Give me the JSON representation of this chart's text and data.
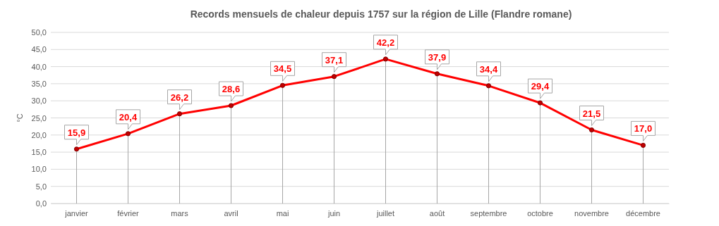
{
  "chart_data": {
    "type": "line",
    "title": "Records mensuels de chaleur depuis 1757 sur la région de Lille (Flandre romane)",
    "ylabel": "°C",
    "categories": [
      "janvier",
      "février",
      "mars",
      "avril",
      "mai",
      "juin",
      "juillet",
      "août",
      "septembre",
      "octobre",
      "novembre",
      "décembre"
    ],
    "series": [
      {
        "color": "#ff0000",
        "values": [
          15.9,
          20.4,
          26.2,
          28.6,
          34.5,
          37.1,
          42.2,
          37.9,
          34.4,
          29.4,
          21.5,
          17.0
        ],
        "value_labels": [
          "15,9",
          "20,4",
          "26,2",
          "28,6",
          "34,5",
          "37,1",
          "42,2",
          "37,9",
          "34,4",
          "29,4",
          "21,5",
          "17,0"
        ]
      }
    ],
    "ylim": [
      0,
      50
    ],
    "yticks": [
      {
        "value": 0,
        "label": "0,0"
      },
      {
        "value": 5,
        "label": "5,0"
      },
      {
        "value": 10,
        "label": "10,0"
      },
      {
        "value": 15,
        "label": "15,0"
      },
      {
        "value": 20,
        "label": "20,0"
      },
      {
        "value": 25,
        "label": "25,0"
      },
      {
        "value": 30,
        "label": "30,0"
      },
      {
        "value": 35,
        "label": "35,0"
      },
      {
        "value": 40,
        "label": "40,0"
      },
      {
        "value": 45,
        "label": "45,0"
      },
      {
        "value": 50,
        "label": "50,0"
      }
    ],
    "grid": true,
    "marker": "circle",
    "line_style": "solid"
  }
}
